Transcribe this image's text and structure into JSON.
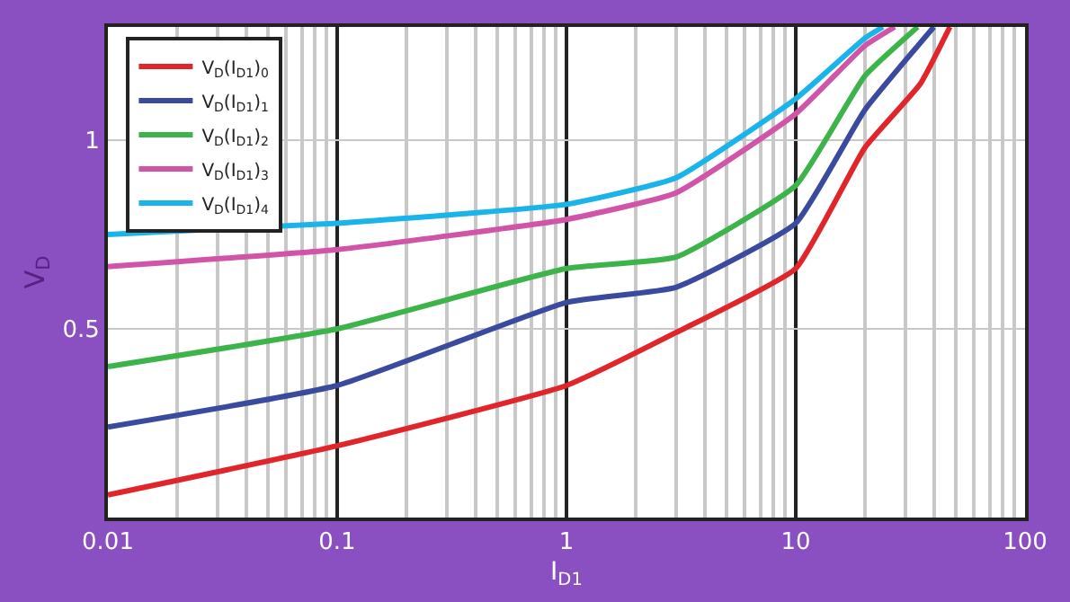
{
  "chart_data": {
    "type": "line",
    "xlabel": "I$_{D1}$",
    "ylabel": "V$_{D}$",
    "log": "x",
    "xlim": [
      0.01,
      100
    ],
    "xticks": [
      0.01,
      0.1,
      1,
      10,
      100
    ],
    "ylim": [
      0,
      1.3
    ],
    "yticks": [
      0.5,
      1
    ],
    "grid": true,
    "legend": "top left",
    "line_style": "solid",
    "series": [
      {
        "name": "V$_{D}$(I$_{D1}$)$_{0}$",
        "color": "#e0262a",
        "x": [
          0.01,
          0.1,
          1,
          3,
          10,
          20,
          35,
          47
        ],
        "values": [
          0.06,
          0.19,
          0.35,
          0.49,
          0.66,
          0.98,
          1.15,
          1.3
        ]
      },
      {
        "name": "V$_{D}$(I$_{D1}$)$_{1}$",
        "color": "#3a4a9e",
        "x": [
          0.01,
          0.1,
          1,
          3,
          10,
          20,
          40
        ],
        "values": [
          0.24,
          0.35,
          0.57,
          0.61,
          0.78,
          1.08,
          1.3
        ]
      },
      {
        "name": "V$_{D}$(I$_{D1}$)$_{2}$",
        "color": "#3cb44a",
        "x": [
          0.01,
          0.1,
          1,
          3,
          10,
          20,
          34
        ],
        "values": [
          0.4,
          0.5,
          0.66,
          0.69,
          0.88,
          1.17,
          1.3
        ]
      },
      {
        "name": "V$_{D}$(I$_{D1}$)$_{3}$",
        "color": "#d055a8",
        "x": [
          0.01,
          0.1,
          1,
          3,
          10,
          20,
          27
        ],
        "values": [
          0.665,
          0.71,
          0.79,
          0.86,
          1.07,
          1.25,
          1.3
        ]
      },
      {
        "name": "V$_{D}$(I$_{D1}$)$_{4}$",
        "color": "#1ab4ea",
        "x": [
          0.01,
          0.1,
          1,
          3,
          10,
          20,
          24
        ],
        "values": [
          0.75,
          0.78,
          0.83,
          0.9,
          1.11,
          1.27,
          1.3
        ]
      }
    ]
  }
}
